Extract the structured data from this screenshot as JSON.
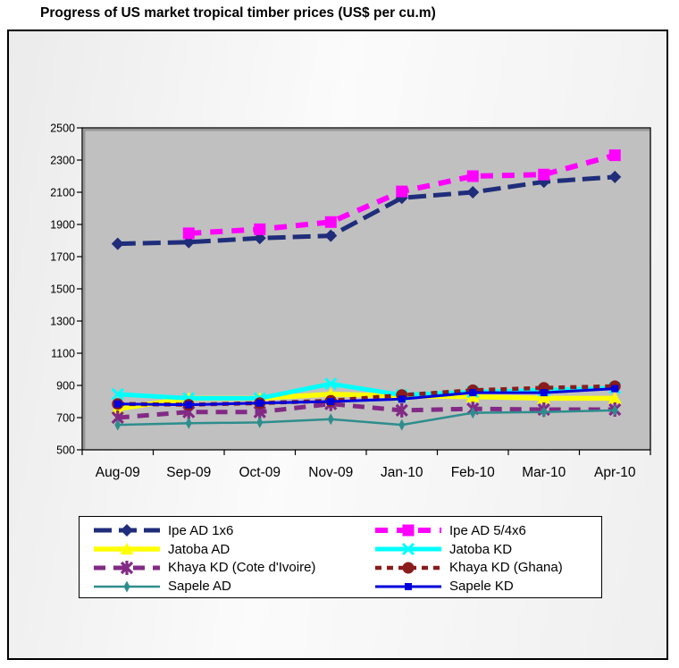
{
  "title": "Progress of US market tropical timber prices (US$ per cu.m)",
  "chart_data": {
    "type": "line",
    "title": "Progress of US market tropical timber prices (US$ per cu.m)",
    "xlabel": "",
    "ylabel": "US$ per cu.m",
    "categories": [
      "Aug-09",
      "Sep-09",
      "Oct-09",
      "Nov-09",
      "Jan-10",
      "Feb-10",
      "Mar-10",
      "Apr-10"
    ],
    "ylim": [
      500,
      2500
    ],
    "y_ticks": [
      500,
      700,
      900,
      1100,
      1300,
      1500,
      1700,
      1900,
      2100,
      2300,
      2500
    ],
    "grid": false,
    "legend_position": "bottom",
    "plot_bg": "#c0c0c0",
    "series": [
      {
        "name": "Ipe AD 1x6",
        "color": "#1f2d7a",
        "dash": "20 8",
        "width": 5,
        "marker": "diamond",
        "values": [
          1780,
          1790,
          1815,
          1830,
          2065,
          2100,
          2165,
          2195
        ]
      },
      {
        "name": "Ipe AD 5/4x6",
        "color": "#ff00ff",
        "dash": "14 10",
        "width": 6,
        "marker": "square",
        "values": [
          null,
          1845,
          1870,
          1915,
          2105,
          2200,
          2210,
          2330
        ]
      },
      {
        "name": "Jatoba AD",
        "color": "#ffff00",
        "dash": null,
        "width": 5.5,
        "marker": "triangle",
        "values": [
          755,
          820,
          820,
          845,
          835,
          830,
          820,
          820
        ]
      },
      {
        "name": "Jatoba KD",
        "color": "#00ffff",
        "dash": null,
        "width": 5,
        "marker": "x",
        "values": [
          845,
          820,
          820,
          910,
          840,
          860,
          870,
          885
        ]
      },
      {
        "name": "Khaya KD (Cote d'Ivoire)",
        "color": "#822a85",
        "dash": "13 9",
        "width": 5,
        "marker": "star",
        "values": [
          700,
          735,
          735,
          785,
          745,
          755,
          750,
          750
        ]
      },
      {
        "name": "Khaya KD (Ghana)",
        "color": "#8b1c1c",
        "dash": "7 6",
        "width": 4.5,
        "marker": "circle",
        "values": [
          785,
          780,
          790,
          805,
          840,
          870,
          885,
          895
        ]
      },
      {
        "name": "Sapele AD",
        "color": "#2e8d8d",
        "dash": null,
        "width": 2.5,
        "marker": "vdiamond",
        "values": [
          655,
          665,
          670,
          690,
          655,
          730,
          735,
          745
        ]
      },
      {
        "name": "Sapele KD",
        "color": "#0000dd",
        "dash": null,
        "width": 3,
        "marker": "square-small",
        "values": [
          785,
          780,
          790,
          800,
          815,
          855,
          855,
          880
        ]
      }
    ]
  }
}
